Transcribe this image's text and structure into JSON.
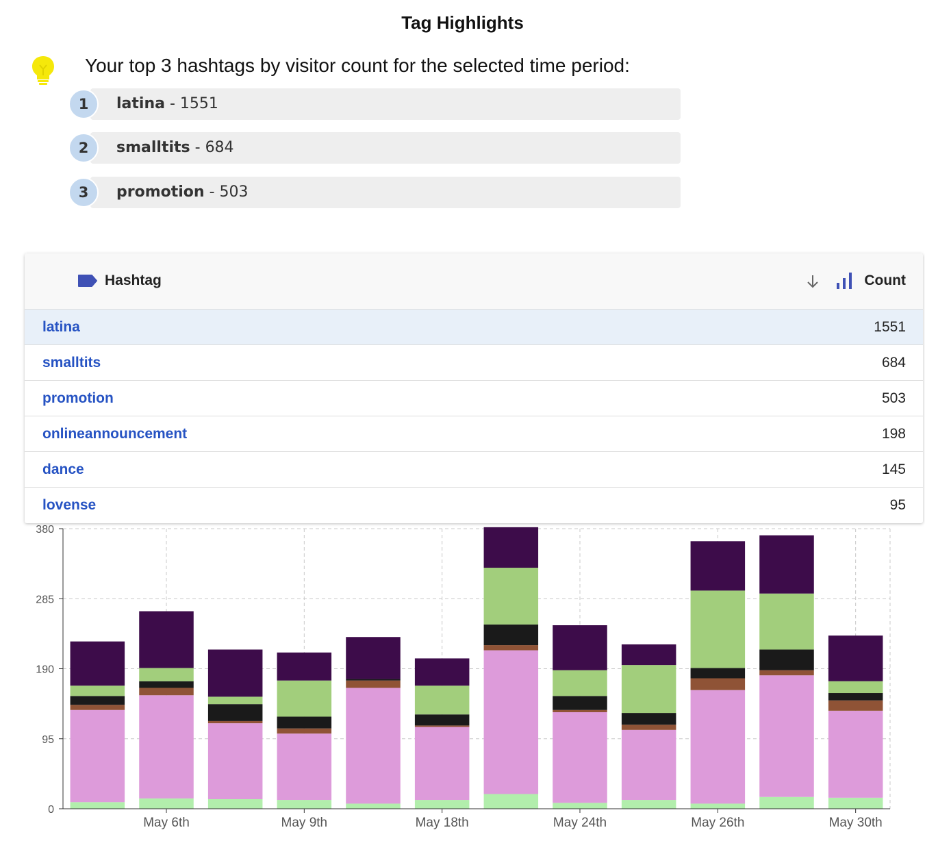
{
  "title": "Tag Highlights",
  "intro": "Your top 3 hashtags by visitor count for the selected time period:",
  "top3": [
    {
      "rank": "1",
      "name": "latina",
      "count": "1551"
    },
    {
      "rank": "2",
      "name": "smalltits",
      "count": "684"
    },
    {
      "rank": "3",
      "name": "promotion",
      "count": "503"
    }
  ],
  "table": {
    "col_hashtag": "Hashtag",
    "col_count": "Count",
    "rows": [
      {
        "name": "latina",
        "count": "1551"
      },
      {
        "name": "smalltits",
        "count": "684"
      },
      {
        "name": "promotion",
        "count": "503"
      },
      {
        "name": "onlineannouncement",
        "count": "198"
      },
      {
        "name": "dance",
        "count": "145"
      },
      {
        "name": "lovense",
        "count": "95"
      }
    ]
  },
  "colors": {
    "accent": "#3f51b5",
    "link": "#2653c3",
    "bulb": "#f5e80a",
    "badge": "#c3d8ef"
  },
  "chart_data": {
    "type": "bar",
    "stacked": true,
    "ylim": [
      0,
      380
    ],
    "yticks": [
      0,
      95,
      190,
      285,
      380
    ],
    "xtick_labels": [
      {
        "label": "May 6th",
        "index": 1
      },
      {
        "label": "May 9th",
        "index": 3
      },
      {
        "label": "May 18th",
        "index": 5
      },
      {
        "label": "May 24th",
        "index": 7
      },
      {
        "label": "May 26th",
        "index": 9
      },
      {
        "label": "May 30th",
        "index": 11
      }
    ],
    "grid": true,
    "series": [
      {
        "color": "#b2eeac",
        "values": [
          9,
          14,
          13,
          12,
          7,
          12,
          20,
          8,
          12,
          7,
          16,
          15
        ]
      },
      {
        "color": "#dd9bda",
        "values": [
          125,
          140,
          103,
          90,
          157,
          99,
          195,
          123,
          95,
          154,
          165,
          118
        ]
      },
      {
        "color": "#8f5336",
        "values": [
          7,
          10,
          3,
          7,
          10,
          2,
          7,
          3,
          7,
          16,
          7,
          14
        ]
      },
      {
        "color": "#1a1a1a",
        "values": [
          12,
          9,
          23,
          16,
          2,
          15,
          28,
          19,
          16,
          14,
          28,
          10
        ]
      },
      {
        "color": "#a2ce7c",
        "values": [
          14,
          18,
          10,
          49,
          0,
          39,
          77,
          35,
          65,
          105,
          76,
          16
        ]
      },
      {
        "color": "#3d0c4a",
        "values": [
          60,
          77,
          64,
          38,
          57,
          37,
          55,
          61,
          28,
          67,
          79,
          62
        ]
      }
    ]
  }
}
